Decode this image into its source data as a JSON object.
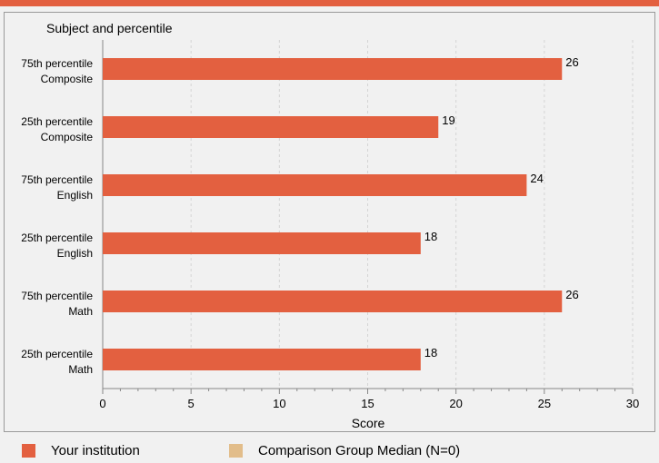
{
  "colors": {
    "accent": "#e36040",
    "comparison": "#e2bd8a",
    "axis": "#888888",
    "grid": "#d4d4d4",
    "panel_border": "#9a9a9a"
  },
  "chart_data": {
    "type": "bar",
    "orientation": "horizontal",
    "title": "Subject and percentile",
    "xlabel": "Score",
    "xlim": [
      0,
      30
    ],
    "xticks": [
      0,
      5,
      10,
      15,
      20,
      25,
      30
    ],
    "grid": "vertical dashed lines",
    "categories": [
      [
        "75th percentile",
        "Composite"
      ],
      [
        "25th percentile",
        "Composite"
      ],
      [
        "75th percentile",
        "English"
      ],
      [
        "25th percentile",
        "English"
      ],
      [
        "75th percentile",
        "Math"
      ],
      [
        "25th percentile",
        "Math"
      ]
    ],
    "series": [
      {
        "name": "Your institution",
        "values": [
          26,
          19,
          24,
          18,
          26,
          18
        ],
        "color": "#e36040"
      }
    ],
    "legend_position": "bottom"
  },
  "legend": {
    "items": [
      {
        "label": "Your institution",
        "color": "#e36040"
      },
      {
        "label": "Comparison Group Median (N=0)",
        "color": "#e2bd8a"
      }
    ]
  }
}
